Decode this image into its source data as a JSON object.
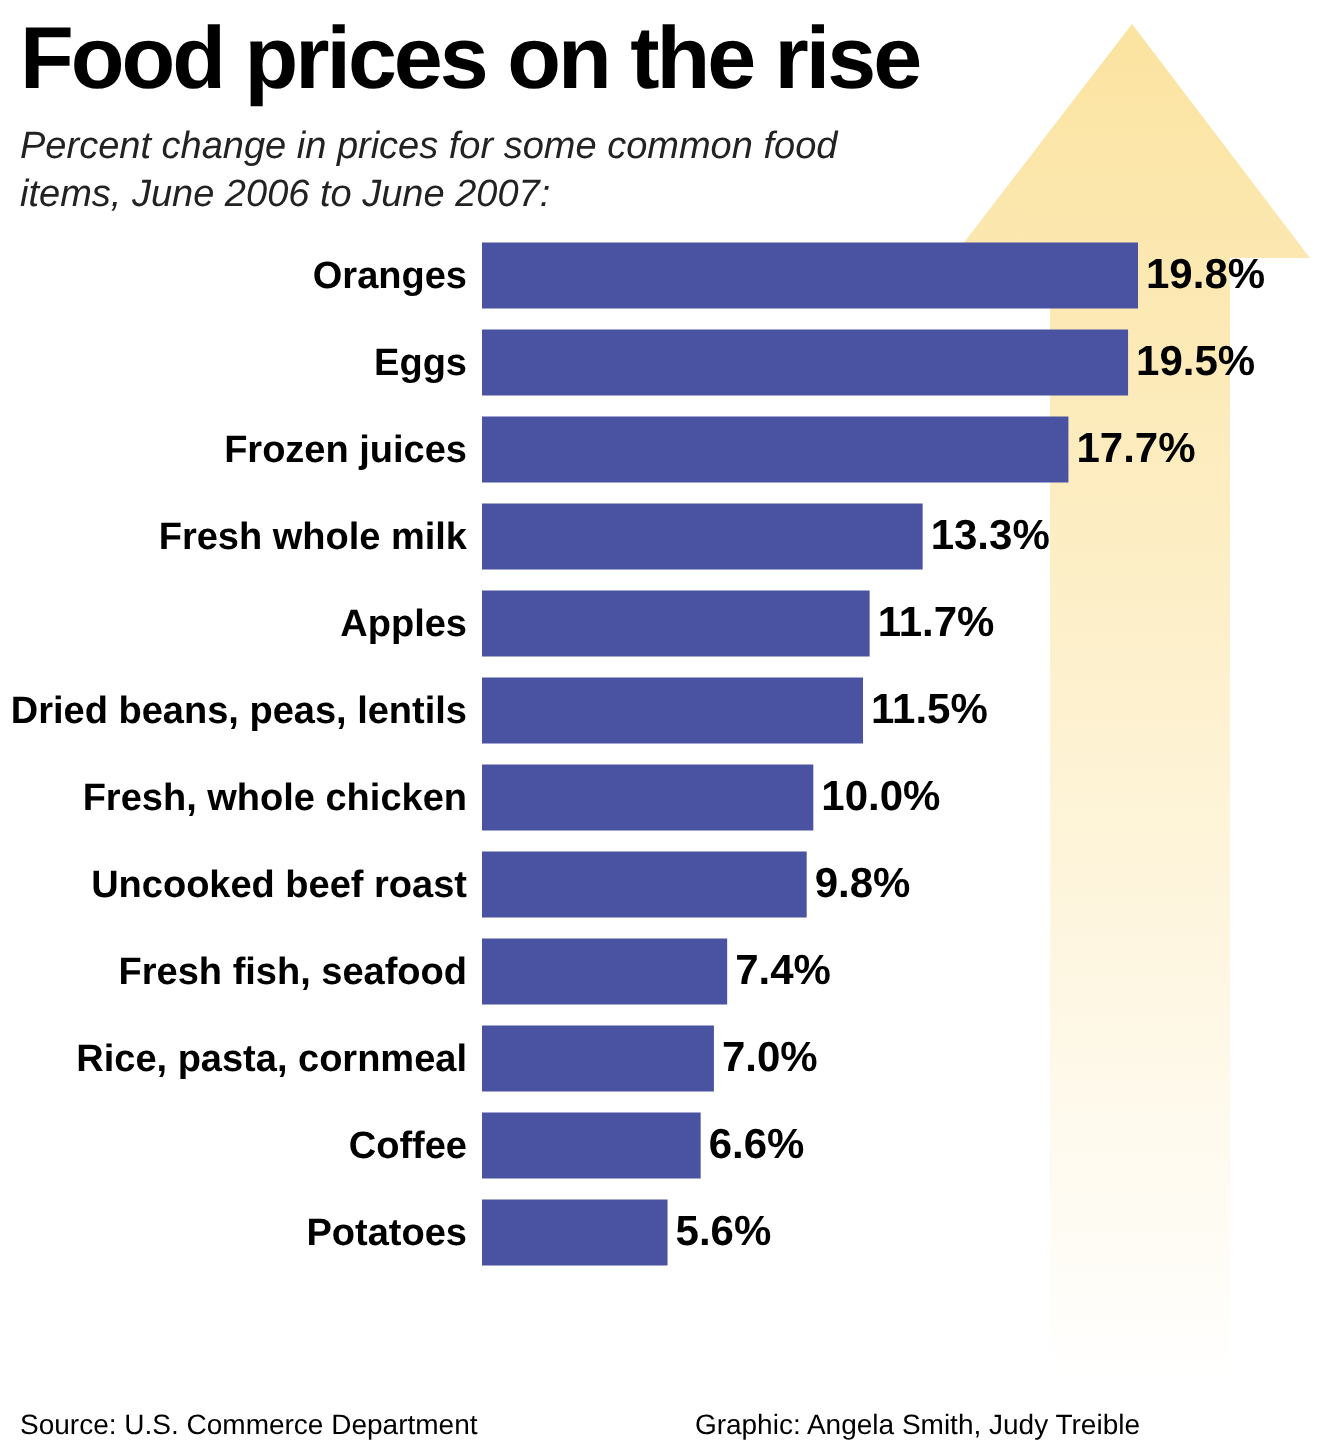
{
  "chart_data": {
    "type": "bar",
    "orientation": "horizontal",
    "title": "Food prices on the rise",
    "subtitle": "Percent change in prices for some common food items, June 2006 to June 2007:",
    "categories": [
      "Oranges",
      "Eggs",
      "Frozen juices",
      "Fresh whole milk",
      "Apples",
      "Dried beans, peas, lentils",
      "Fresh, whole chicken",
      "Uncooked beef roast",
      "Fresh fish, seafood",
      "Rice, pasta, cornmeal",
      "Coffee",
      "Potatoes"
    ],
    "values": [
      19.8,
      19.5,
      17.7,
      13.3,
      11.7,
      11.5,
      10.0,
      9.8,
      7.4,
      7.0,
      6.6,
      5.6
    ],
    "value_labels": [
      "19.8%",
      "19.5%",
      "17.7%",
      "13.3%",
      "11.7%",
      "11.5%",
      "10.0%",
      "9.8%",
      "7.4%",
      "7.0%",
      "6.6%",
      "5.6%"
    ],
    "color": "#4a53a2",
    "annotations": [
      "Source: U.S. Commerce Department",
      "Graphic: Angela Smith, Judy Treible"
    ]
  }
}
